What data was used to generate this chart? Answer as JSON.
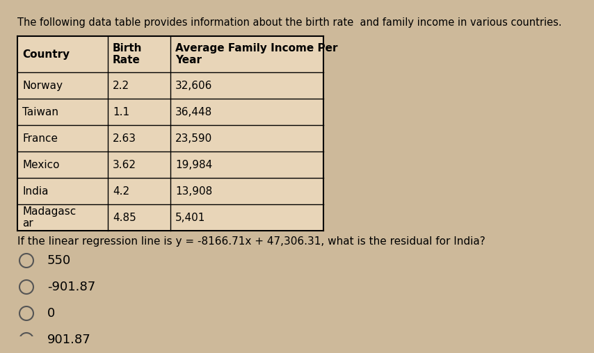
{
  "title": "The following data table provides information about the birth rate  and family income in various countries.",
  "headers": [
    "Country",
    "Birth\nRate",
    "Average Family Income Per\nYear"
  ],
  "rows": [
    [
      "Norway",
      "2.2",
      "32,606"
    ],
    [
      "Taiwan",
      "1.1",
      "36,448"
    ],
    [
      "France",
      "2.63",
      "23,590"
    ],
    [
      "Mexico",
      "3.62",
      "19,984"
    ],
    [
      "India",
      "4.2",
      "13,908"
    ],
    [
      "Madagasc\nar",
      "4.85",
      "5,401"
    ]
  ],
  "question": "If the linear regression line is y = -8166.71x + 47,306.31, what is the residual for India?",
  "options": [
    "550",
    "-901.87",
    "0",
    "901.87"
  ],
  "bg_color": "#cdb99a",
  "table_bg": "#e8d5b8",
  "text_color": "#000000",
  "title_fontsize": 10.5,
  "table_fontsize": 11,
  "question_fontsize": 11,
  "option_fontsize": 13
}
